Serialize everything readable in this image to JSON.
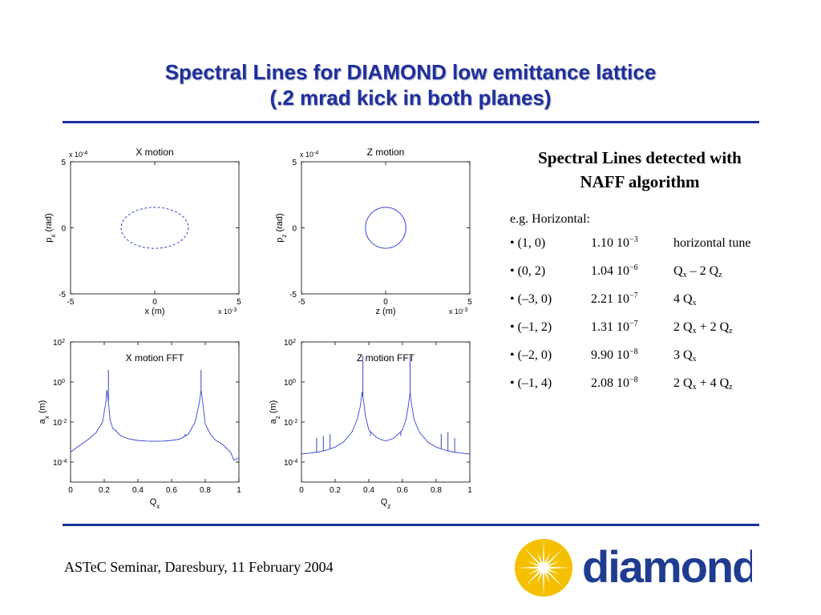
{
  "slide": {
    "title_line1": "Spectral Lines for DIAMOND low emittance lattice",
    "title_line2": "(.2 mrad kick in both planes)",
    "footer": "ASTeC Seminar, Daresbury, 11 February 2004",
    "logo_text": "diamond",
    "colors": {
      "title": "#1f2f9e",
      "rule": "#1c2f9c",
      "plot_line": "#3344cc",
      "logo_blue": "#1f3c91",
      "logo_yellow": "#f5c000"
    }
  },
  "naff": {
    "heading_line1": "Spectral Lines detected with",
    "heading_line2": "NAFF algorithm",
    "subtitle": "e.g. Horizontal:",
    "bullet": "•",
    "rows": [
      {
        "pair": "(1, 0)",
        "mantissa": "1.10 10",
        "exp": "−3",
        "desc": "horizontal tune"
      },
      {
        "pair": "(0, 2)",
        "mantissa": "1.04 10",
        "exp": "−6",
        "desc": [
          [
            "Q",
            "x"
          ],
          " – 2 ",
          [
            "Q",
            "z"
          ]
        ]
      },
      {
        "pair": "(–3, 0)",
        "mantissa": "2.21 10",
        "exp": "−7",
        "desc": [
          "4 ",
          [
            "Q",
            "x"
          ]
        ]
      },
      {
        "pair": "(–1, 2)",
        "mantissa": "1.31 10",
        "exp": "−7",
        "desc": [
          "2 ",
          [
            "Q",
            "x"
          ],
          " + 2 ",
          [
            "Q",
            "z"
          ]
        ]
      },
      {
        "pair": "(–2, 0)",
        "mantissa": "9.90 10",
        "exp": "−8",
        "desc": [
          "3 ",
          [
            "Q",
            "x"
          ]
        ]
      },
      {
        "pair": "(–1, 4)",
        "mantissa": "2.08 10",
        "exp": "−8",
        "desc": [
          "2 ",
          [
            "Q",
            "x"
          ],
          " + 4 ",
          [
            "Q",
            "z"
          ]
        ]
      }
    ]
  },
  "chart_data": [
    {
      "type": "scatter",
      "title": "X motion",
      "xlabel": "x (m)",
      "ylabel_base": "p",
      "ylabel_sub": "x",
      "ylabel_unit": " (rad)",
      "x_multiplier": "x 10",
      "x_multiplier_exp": "-3",
      "y_multiplier": "x 10",
      "y_multiplier_exp": "-4",
      "xlim": [
        -5,
        5
      ],
      "ylim": [
        -5,
        5
      ],
      "xticks": [
        -5,
        0,
        5
      ],
      "yticks": [
        -5,
        0,
        5
      ],
      "xtick_labels": [
        "-5",
        "0",
        "5"
      ],
      "ytick_labels": [
        "-5",
        "0",
        "5"
      ],
      "line_style": "dashed",
      "ellipse": {
        "center": [
          0,
          0
        ],
        "semi_x": 2.0,
        "semi_y": 1.55
      }
    },
    {
      "type": "scatter",
      "title": "Z motion",
      "xlabel": "z (m)",
      "ylabel_base": "p",
      "ylabel_sub": "z",
      "ylabel_unit": " (rad)",
      "x_multiplier": "x 10",
      "x_multiplier_exp": "-3",
      "y_multiplier": "x 10",
      "y_multiplier_exp": "-4",
      "xlim": [
        -5,
        5
      ],
      "ylim": [
        -5,
        5
      ],
      "xticks": [
        -5,
        0,
        5
      ],
      "yticks": [
        -5,
        0,
        5
      ],
      "xtick_labels": [
        "-5",
        "0",
        "5"
      ],
      "ytick_labels": [
        "-5",
        "0",
        "5"
      ],
      "line_style": "solid",
      "ellipse": {
        "center": [
          0,
          0
        ],
        "semi_x": 1.2,
        "semi_y": 1.55
      }
    },
    {
      "type": "line",
      "title": "X motion FFT",
      "xlabel_base": "Q",
      "xlabel_sub": "x",
      "ylabel_base": "a",
      "ylabel_sub": "x",
      "ylabel_unit": " (m)",
      "xlim": [
        0,
        1
      ],
      "ylim_log10": [
        -5,
        2
      ],
      "yscale": "log",
      "xticks": [
        0,
        0.2,
        0.4,
        0.6,
        0.8,
        1
      ],
      "xtick_labels": [
        "0",
        "0.2",
        "0.4",
        "0.6",
        "0.8",
        "1"
      ],
      "yticks_log10": [
        2,
        0,
        -2,
        -4
      ],
      "x": [
        0,
        0.05,
        0.1,
        0.15,
        0.19,
        0.21,
        0.215,
        0.225,
        0.235,
        0.25,
        0.3,
        0.35,
        0.4,
        0.45,
        0.5,
        0.55,
        0.6,
        0.65,
        0.7,
        0.74,
        0.765,
        0.775,
        0.785,
        0.8,
        0.83,
        0.86,
        0.9,
        0.95,
        0.97,
        1
      ],
      "y_log10": [
        -3.5,
        -3.2,
        -2.9,
        -2.55,
        -2.0,
        -1.0,
        -0.4,
        -1.0,
        -1.9,
        -2.3,
        -2.7,
        -2.85,
        -2.92,
        -2.95,
        -2.96,
        -2.95,
        -2.92,
        -2.85,
        -2.6,
        -2.0,
        -1.0,
        -0.4,
        -1.0,
        -2.1,
        -2.6,
        -2.9,
        -3.1,
        -3.5,
        -3.9,
        -3.8
      ],
      "spikes": [
        {
          "x": 0.225,
          "top_log10": 0.6
        },
        {
          "x": 0.775,
          "top_log10": 0.6
        },
        {
          "x": 0.27,
          "top_log10": -2.4
        },
        {
          "x": 0.68,
          "top_log10": -2.6
        },
        {
          "x": 0.72,
          "top_log10": -2.3
        }
      ]
    },
    {
      "type": "line",
      "title": "Z motion FFT",
      "xlabel_base": "Q",
      "xlabel_sub": "z",
      "ylabel_base": "a",
      "ylabel_sub": "z",
      "ylabel_unit": " (m)",
      "xlim": [
        0,
        1
      ],
      "ylim_log10": [
        -5,
        2
      ],
      "yscale": "log",
      "xticks": [
        0,
        0.2,
        0.4,
        0.6,
        0.8,
        1
      ],
      "xtick_labels": [
        "0",
        "0.2",
        "0.4",
        "0.6",
        "0.8",
        "1"
      ],
      "yticks_log10": [
        2,
        0,
        -2,
        -4
      ],
      "x": [
        0,
        0.05,
        0.1,
        0.15,
        0.2,
        0.25,
        0.3,
        0.33,
        0.35,
        0.36,
        0.37,
        0.38,
        0.4,
        0.45,
        0.5,
        0.55,
        0.6,
        0.62,
        0.635,
        0.645,
        0.655,
        0.67,
        0.7,
        0.75,
        0.8,
        0.85,
        0.9,
        0.95,
        1
      ],
      "y_log10": [
        -3.6,
        -3.55,
        -3.5,
        -3.4,
        -3.25,
        -3.0,
        -2.5,
        -1.9,
        -1.2,
        -0.5,
        -1.0,
        -1.7,
        -2.4,
        -2.8,
        -2.95,
        -2.8,
        -2.4,
        -1.9,
        -1.2,
        -0.5,
        -1.2,
        -1.9,
        -2.5,
        -3.0,
        -3.25,
        -3.4,
        -3.5,
        -3.55,
        -3.6
      ],
      "spikes": [
        {
          "x": 0.365,
          "top_log10": 1.3
        },
        {
          "x": 0.645,
          "top_log10": 1.3
        },
        {
          "x": 0.09,
          "top_log10": -2.8
        },
        {
          "x": 0.13,
          "top_log10": -2.7
        },
        {
          "x": 0.17,
          "top_log10": -2.6
        },
        {
          "x": 0.41,
          "top_log10": -2.7
        },
        {
          "x": 0.59,
          "top_log10": -2.7
        },
        {
          "x": 0.83,
          "top_log10": -2.6
        },
        {
          "x": 0.87,
          "top_log10": -2.5
        },
        {
          "x": 0.91,
          "top_log10": -2.8
        }
      ]
    }
  ]
}
